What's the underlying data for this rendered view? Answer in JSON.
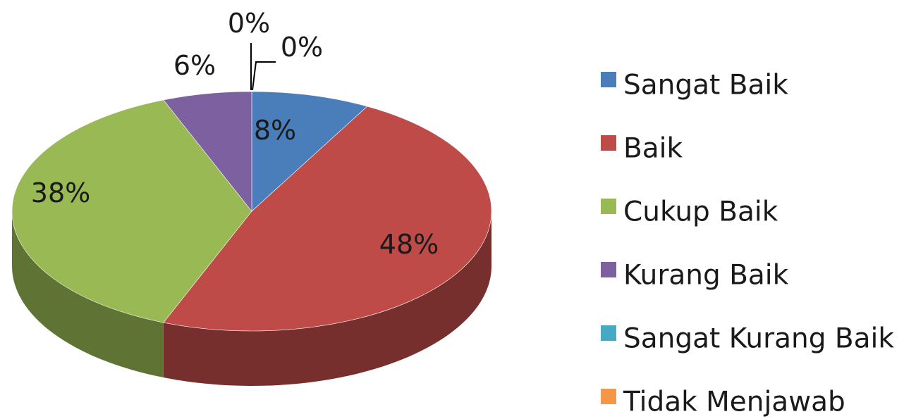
{
  "chart_data": {
    "type": "pie",
    "style": "3d",
    "legend_position": "right",
    "slices": [
      {
        "label": "Sangat Baik",
        "value": 8,
        "display": "8%",
        "color": "#4A7EBB"
      },
      {
        "label": "Baik",
        "value": 48,
        "display": "48%",
        "color": "#BE4B48"
      },
      {
        "label": "Cukup Baik",
        "value": 38,
        "display": "38%",
        "color": "#98B954"
      },
      {
        "label": "Kurang Baik",
        "value": 6,
        "display": "6%",
        "color": "#7D60A0"
      },
      {
        "label": "Sangat Kurang Baik",
        "value": 0,
        "display": "0%",
        "color": "#46AAC5"
      },
      {
        "label": "Tidak Menjawab",
        "value": 0,
        "display": "0%",
        "color": "#F79646"
      }
    ]
  }
}
